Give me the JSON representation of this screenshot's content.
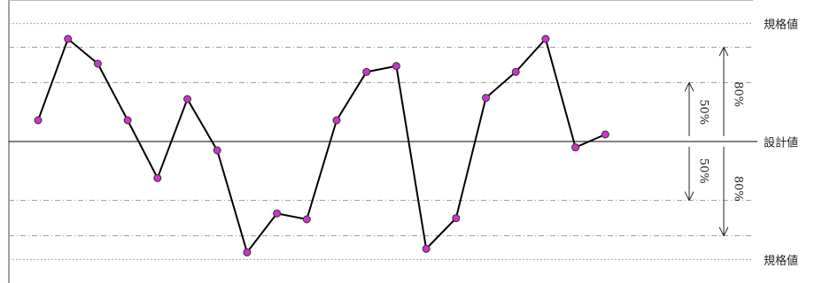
{
  "chart_data": {
    "type": "line",
    "categories": [
      null,
      null,
      null,
      null,
      null,
      null,
      null,
      null,
      null,
      null,
      null,
      null,
      null,
      null,
      null,
      null,
      null,
      null,
      null,
      null
    ],
    "series": [
      {
        "color": "#000000",
        "marker_color": "#cc33cc",
        "values": [
          18,
          87,
          66,
          18,
          -31,
          36,
          -7.5,
          -94,
          -61,
          -66,
          18,
          59,
          64,
          -91,
          -65,
          37,
          59,
          87,
          -5,
          6
        ]
      }
    ],
    "ylim": [
      -120,
      120
    ],
    "reference_lines": [
      {
        "value": 100,
        "label": "規格値",
        "style": "dotted"
      },
      {
        "value": 80,
        "style": "dashdot"
      },
      {
        "value": 50,
        "style": "dashdot"
      },
      {
        "value": 0,
        "label": "設計値",
        "style": "solid"
      },
      {
        "value": -50,
        "style": "dashdot"
      },
      {
        "value": -80,
        "style": "dashdot"
      },
      {
        "value": -100,
        "label": "規格値",
        "style": "dotted"
      }
    ],
    "ranges": [
      {
        "from": 0,
        "to": 50,
        "label": "50%"
      },
      {
        "from": 0,
        "to": 80,
        "label": "80%"
      },
      {
        "from": 0,
        "to": -50,
        "label": "50%"
      },
      {
        "from": 0,
        "to": -80,
        "label": "80%"
      }
    ]
  }
}
